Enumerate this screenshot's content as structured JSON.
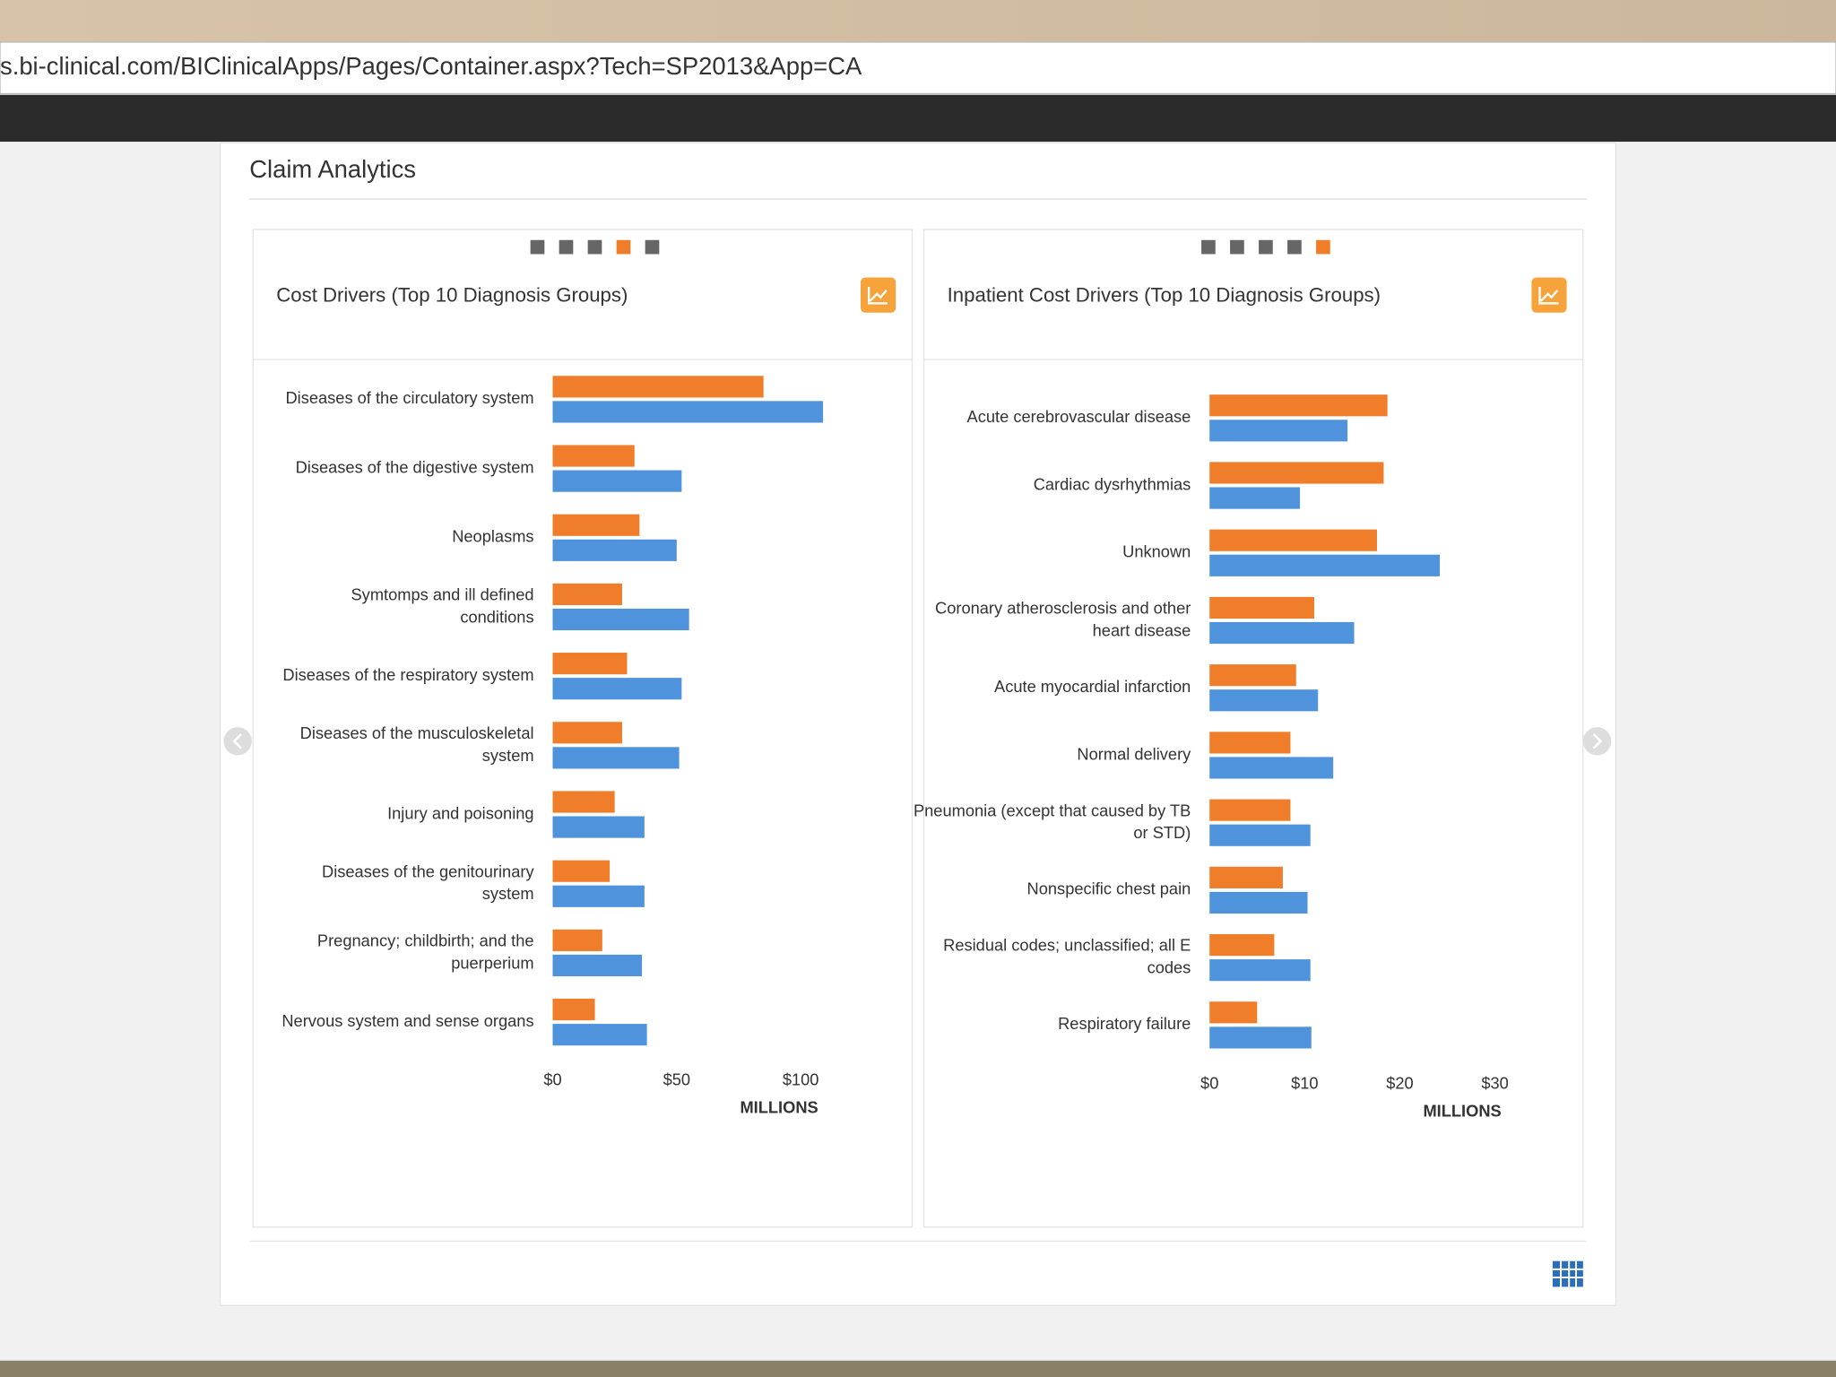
{
  "url": "s.bi-clinical.com/BIClinicalApps/Pages/Container.aspx?Tech=SP2013&App=CA",
  "panel_title": "Claim Analytics",
  "chart_data": [
    {
      "type": "bar",
      "orientation": "horizontal",
      "title": "Cost Drivers (Top 10 Diagnosis Groups)",
      "categories": [
        "Diseases of the circulatory system",
        "Diseases of the digestive system",
        "Neoplasms",
        "Symtomps and ill defined conditions",
        "Diseases of the respiratory system",
        "Diseases of the musculoskeletal system",
        "Injury and poisoning",
        "Diseases of the genitourinary system",
        "Pregnancy; childbirth; and the puerperium",
        "Nervous system and sense organs"
      ],
      "series": [
        {
          "color": "#f07d2a",
          "values": [
            85,
            33,
            35,
            28,
            30,
            28,
            25,
            23,
            20,
            17
          ]
        },
        {
          "color": "#4f93dc",
          "values": [
            109,
            52,
            50,
            55,
            52,
            51,
            37,
            37,
            36,
            38
          ]
        }
      ],
      "xlim": [
        0,
        110
      ],
      "xticks": [
        {
          "value": 0,
          "label": "$0"
        },
        {
          "value": 50,
          "label": "$50"
        },
        {
          "value": 100,
          "label": "$100"
        }
      ],
      "xlabel": "MILLIONS"
    },
    {
      "type": "bar",
      "orientation": "horizontal",
      "title": "Inpatient Cost Drivers (Top 10 Diagnosis Groups)",
      "categories": [
        "Acute cerebrovascular disease",
        "Cardiac dysrhythmias",
        "Unknown",
        "Coronary atherosclerosis and other heart disease",
        "Acute myocardial infarction",
        "Normal delivery",
        "Pneumonia (except that caused by TB or STD)",
        "Nonspecific chest pain",
        "Residual codes; unclassified; all E codes",
        "Respiratory failure"
      ],
      "series": [
        {
          "color": "#f07d2a",
          "values": [
            18.7,
            18.3,
            17.6,
            11,
            9.1,
            8.5,
            8.5,
            7.7,
            6.8,
            5
          ]
        },
        {
          "color": "#4f93dc",
          "values": [
            14.5,
            9.5,
            24.2,
            15.2,
            11.4,
            13,
            10.6,
            10.3,
            10.6,
            10.7
          ]
        }
      ],
      "xlim": [
        0,
        32
      ],
      "xticks": [
        {
          "value": 0,
          "label": "$0"
        },
        {
          "value": 10,
          "label": "$10"
        },
        {
          "value": 20,
          "label": "$20"
        },
        {
          "value": 30,
          "label": "$30"
        }
      ],
      "xlabel": "MILLIONS"
    }
  ]
}
